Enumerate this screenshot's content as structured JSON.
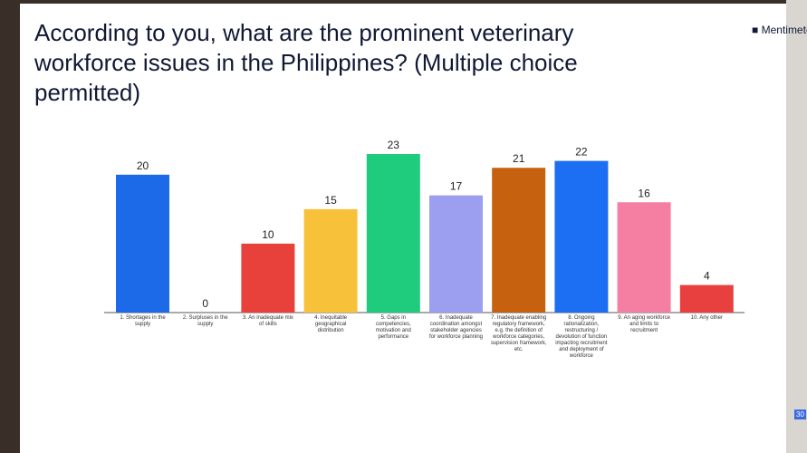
{
  "chart_data": {
    "type": "bar",
    "title": "According to you, what are the prominent veterinary workforce issues in the Philippines? (Multiple choice permitted)",
    "categories": [
      "1. Shortages in the supply",
      "2. Surpluses in the supply",
      "3. An inadequate mix of skills",
      "4. Inequitable geographical distribution",
      "5. Gaps in competencies, motivation and performance",
      "6. Inadequate coordination amongst stakeholder agencies for workforce planning",
      "7. Inadequate enabling regulatory framework, e.g. the definition of workforce categories, supervision framework, etc.",
      "8. Ongoing rationalization, restructuring / devolution of function impacting recruitment and deployment of workforce",
      "9. An aging workforce and limits to recruitment",
      "10. Any other"
    ],
    "values": [
      20,
      0,
      10,
      15,
      23,
      17,
      21,
      22,
      16,
      4
    ],
    "colors": [
      "#1c6ae8",
      "#1c6ae8",
      "#e8403a",
      "#f8c13a",
      "#1fcb7c",
      "#9c9ef0",
      "#c5610f",
      "#1c6ef2",
      "#f57fa2",
      "#e8403e"
    ]
  },
  "brand": "Mentimeter",
  "badge": "30"
}
